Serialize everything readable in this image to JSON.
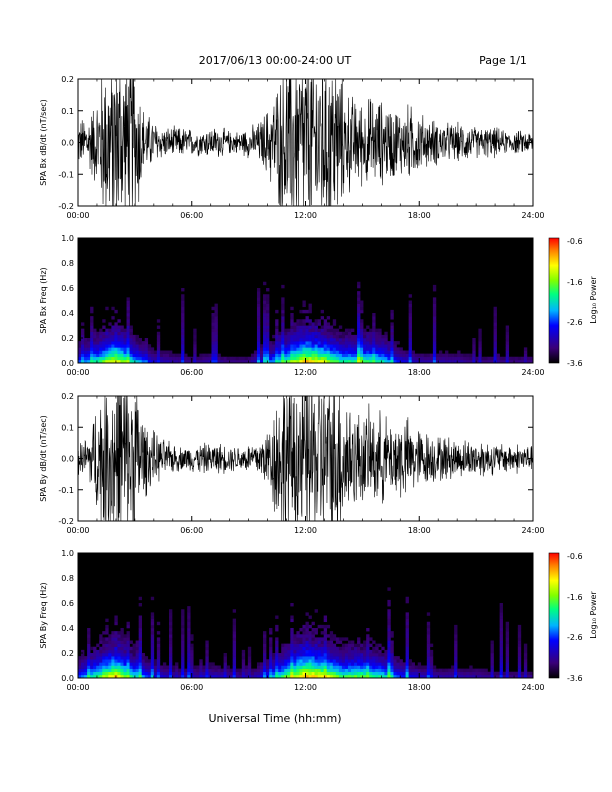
{
  "header": {
    "title": "2017/06/13  00:00-24:00 UT",
    "page": "Page 1/1"
  },
  "xlabel": "Universal Time (hh:mm)",
  "colorbar": {
    "label": "Log₁₀ Power",
    "ticks": [
      "-0.6",
      "-1.6",
      "-2.6",
      "-3.6"
    ],
    "range": [
      -3.6,
      -0.6
    ],
    "colors": [
      "#000000",
      "#3a0078",
      "#0000ff",
      "#00b4ff",
      "#00ff80",
      "#80ff00",
      "#ffff00",
      "#ff8000",
      "#ff0000"
    ]
  },
  "chart_data": [
    {
      "type": "line",
      "title": "",
      "xlabel": "",
      "ylabel": "SPA Bx dB/dt (nT/sec)",
      "xlim": [
        0,
        24
      ],
      "ylim": [
        -0.2,
        0.2
      ],
      "xticks": [
        "00:00",
        "06:00",
        "12:00",
        "18:00",
        "24:00"
      ],
      "yticks": [
        "-0.2",
        "-0.1",
        "0.0",
        "0.1",
        "0.2"
      ],
      "series": [
        {
          "values_description_note": "",
          "x": [
            0,
            0.5,
            1,
            1.5,
            2,
            2.5,
            3,
            3.5,
            4,
            4.5,
            5,
            5.5,
            6,
            6.5,
            7,
            7.5,
            8,
            8.5,
            9,
            9.5,
            10,
            10.5,
            11,
            11.5,
            12,
            12.5,
            13,
            13.5,
            14,
            14.5,
            15,
            15.5,
            16,
            16.5,
            17,
            17.5,
            18,
            18.5,
            19,
            19.5,
            20,
            20.5,
            21,
            21.5,
            22,
            22.5,
            23,
            23.5,
            24
          ],
          "amplitude": [
            0.06,
            0.07,
            0.12,
            0.25,
            0.25,
            0.25,
            0.25,
            0.08,
            0.06,
            0.04,
            0.04,
            0.04,
            0.035,
            0.035,
            0.04,
            0.04,
            0.03,
            0.03,
            0.04,
            0.05,
            0.09,
            0.15,
            0.25,
            0.25,
            0.25,
            0.25,
            0.25,
            0.25,
            0.15,
            0.12,
            0.11,
            0.12,
            0.11,
            0.1,
            0.09,
            0.1,
            0.08,
            0.06,
            0.06,
            0.05,
            0.05,
            0.05,
            0.04,
            0.04,
            0.04,
            0.03,
            0.03,
            0.03,
            0.03
          ]
        }
      ]
    },
    {
      "type": "heatmap",
      "title": "",
      "ylabel": "SPA Bx Freq (Hz)",
      "xlim": [
        0,
        24
      ],
      "ylim": [
        0,
        1
      ],
      "xticks": [
        "00:00",
        "06:00",
        "12:00",
        "18:00",
        "24:00"
      ],
      "yticks": [
        "0.0",
        "0.2",
        "0.4",
        "0.6",
        "0.8",
        "1.0"
      ],
      "zlim": [
        -3.6,
        -0.6
      ],
      "activity_by_hour": [
        0.35,
        0.55,
        0.8,
        0.5,
        0.25,
        0.2,
        0.15,
        0.2,
        0.15,
        0.15,
        0.35,
        0.6,
        0.85,
        0.75,
        0.55,
        0.6,
        0.55,
        0.3,
        0.2,
        0.2,
        0.2,
        0.15,
        0.15,
        0.15,
        0.15
      ]
    },
    {
      "type": "line",
      "title": "",
      "xlabel": "",
      "ylabel": "SPA By dB/dt (nT/sec)",
      "xlim": [
        0,
        24
      ],
      "ylim": [
        -0.2,
        0.2
      ],
      "xticks": [
        "00:00",
        "06:00",
        "12:00",
        "18:00",
        "24:00"
      ],
      "yticks": [
        "-0.2",
        "-0.1",
        "0.0",
        "0.1",
        "0.2"
      ],
      "series": [
        {
          "values_description_note": "",
          "x": [
            0,
            0.5,
            1,
            1.5,
            2,
            2.5,
            3,
            3.5,
            4,
            4.5,
            5,
            5.5,
            6,
            6.5,
            7,
            7.5,
            8,
            8.5,
            9,
            9.5,
            10,
            10.5,
            11,
            11.5,
            12,
            12.5,
            13,
            13.5,
            14,
            14.5,
            15,
            15.5,
            16,
            16.5,
            17,
            17.5,
            18,
            18.5,
            19,
            19.5,
            20,
            20.5,
            21,
            21.5,
            22,
            22.5,
            23,
            23.5,
            24
          ],
          "amplitude": [
            0.04,
            0.06,
            0.15,
            0.25,
            0.25,
            0.25,
            0.25,
            0.1,
            0.07,
            0.05,
            0.04,
            0.03,
            0.035,
            0.04,
            0.04,
            0.04,
            0.035,
            0.035,
            0.04,
            0.05,
            0.08,
            0.18,
            0.25,
            0.25,
            0.25,
            0.25,
            0.25,
            0.25,
            0.2,
            0.14,
            0.12,
            0.13,
            0.12,
            0.1,
            0.12,
            0.1,
            0.08,
            0.07,
            0.06,
            0.06,
            0.05,
            0.05,
            0.05,
            0.05,
            0.04,
            0.04,
            0.04,
            0.04,
            0.03
          ]
        }
      ]
    },
    {
      "type": "heatmap",
      "title": "",
      "ylabel": "SPA By Freq (Hz)",
      "xlim": [
        0,
        24
      ],
      "ylim": [
        0,
        1
      ],
      "xticks": [
        "00:00",
        "06:00",
        "12:00",
        "18:00",
        "24:00"
      ],
      "yticks": [
        "0.0",
        "0.2",
        "0.4",
        "0.6",
        "0.8",
        "1.0"
      ],
      "zlim": [
        -3.6,
        -0.6
      ],
      "activity_by_hour": [
        0.35,
        0.6,
        0.85,
        0.5,
        0.3,
        0.2,
        0.2,
        0.25,
        0.2,
        0.15,
        0.35,
        0.65,
        0.9,
        0.8,
        0.6,
        0.65,
        0.55,
        0.35,
        0.25,
        0.2,
        0.2,
        0.2,
        0.15,
        0.15,
        0.15
      ]
    }
  ]
}
